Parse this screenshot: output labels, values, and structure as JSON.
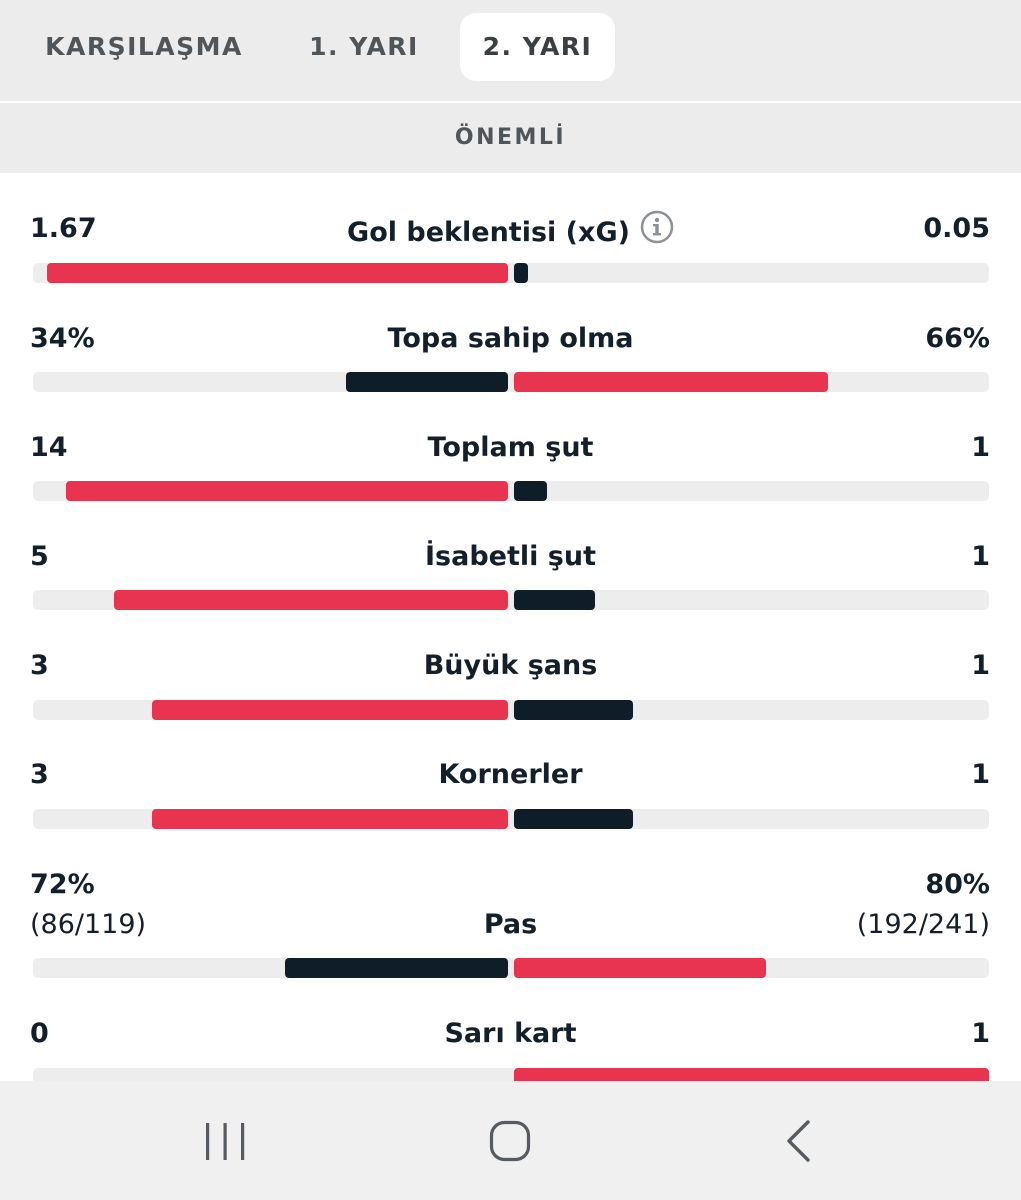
{
  "tabs": [
    {
      "label": "KARŞILAŞMA",
      "active": false
    },
    {
      "label": "1. YARI",
      "active": false
    },
    {
      "label": "2. YARI",
      "active": true
    }
  ],
  "section": {
    "title": "ÖNEMLİ"
  },
  "colors": {
    "home_bar": "#e8344e",
    "away_bar": "#0f1d28",
    "track": "#ededed",
    "tab_bg": "#ececec"
  },
  "stats": [
    {
      "label": "Gol beklentisi (xG)",
      "home": "1.67",
      "away": "0.05",
      "home_share": 0.97,
      "away_share": 0.03,
      "home_color": "#e8344e",
      "away_color": "#0f1d28",
      "info_icon": "info-icon"
    },
    {
      "label": "Topa sahip olma",
      "home": "34%",
      "away": "66%",
      "home_share": 0.34,
      "away_share": 0.66,
      "home_color": "#0f1d28",
      "away_color": "#e8344e"
    },
    {
      "label": "Toplam şut",
      "home": "14",
      "away": "1",
      "home_share": 0.93,
      "away_share": 0.07,
      "home_color": "#e8344e",
      "away_color": "#0f1d28"
    },
    {
      "label": "İsabetli şut",
      "home": "5",
      "away": "1",
      "home_share": 0.83,
      "away_share": 0.17,
      "home_color": "#e8344e",
      "away_color": "#0f1d28"
    },
    {
      "label": "Büyük şans",
      "home": "3",
      "away": "1",
      "home_share": 0.75,
      "away_share": 0.25,
      "home_color": "#e8344e",
      "away_color": "#0f1d28"
    },
    {
      "label": "Kornerler",
      "home": "3",
      "away": "1",
      "home_share": 0.75,
      "away_share": 0.25,
      "home_color": "#e8344e",
      "away_color": "#0f1d28"
    },
    {
      "label": "Pas",
      "home": "72%",
      "away": "80%",
      "home_sub": "(86/119)",
      "away_sub": "(192/241)",
      "home_share": 0.47,
      "away_share": 0.53,
      "home_color": "#0f1d28",
      "away_color": "#e8344e"
    },
    {
      "label": "Sarı kart",
      "home": "0",
      "away": "1",
      "home_share": 0.0,
      "away_share": 1.0,
      "home_color": "#e8344e",
      "away_color": "#e8344e"
    }
  ],
  "bottom_nav": [
    {
      "icon": "recent-apps-icon"
    },
    {
      "icon": "home-icon"
    },
    {
      "icon": "back-icon"
    }
  ]
}
